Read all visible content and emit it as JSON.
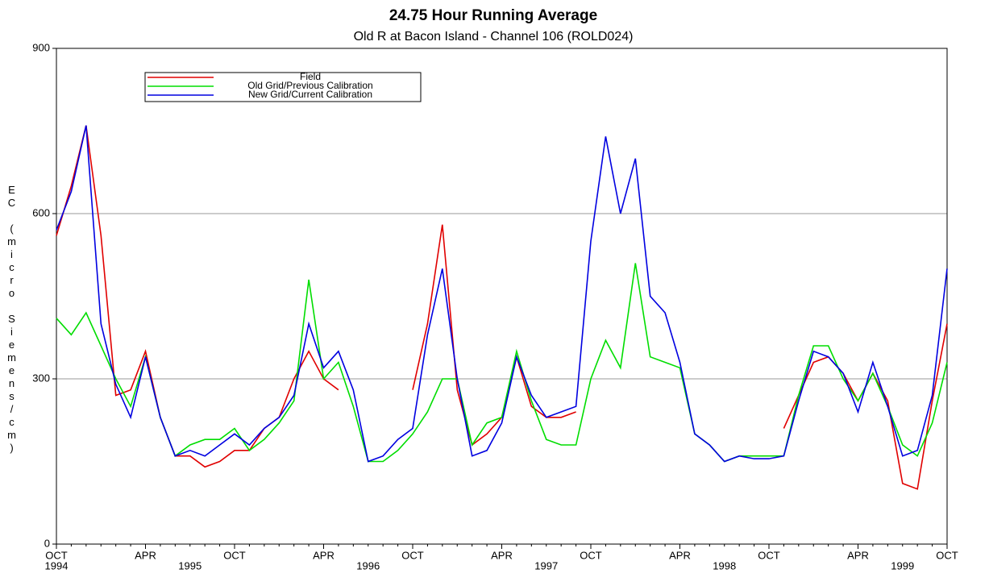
{
  "chart_data": {
    "type": "line",
    "title": "24.75 Hour Running Average",
    "subtitle": "Old R at Bacon Island - Channel 106 (ROLD024)",
    "y_label": "EC (micro Siemens/cm)",
    "x": [
      "1994-10",
      "1994-11",
      "1994-12",
      "1995-01",
      "1995-02",
      "1995-03",
      "1995-04",
      "1995-05",
      "1995-06",
      "1995-07",
      "1995-08",
      "1995-09",
      "1995-10",
      "1995-11",
      "1995-12",
      "1996-01",
      "1996-02",
      "1996-03",
      "1996-04",
      "1996-05",
      "1996-06",
      "1996-07",
      "1996-08",
      "1996-09",
      "1996-10",
      "1996-11",
      "1996-12",
      "1997-01",
      "1997-02",
      "1997-03",
      "1997-04",
      "1997-05",
      "1997-06",
      "1997-07",
      "1997-08",
      "1997-09",
      "1997-10",
      "1997-11",
      "1997-12",
      "1998-01",
      "1998-02",
      "1998-03",
      "1998-04",
      "1998-05",
      "1998-06",
      "1998-07",
      "1998-08",
      "1998-09",
      "1998-10",
      "1998-11",
      "1998-12",
      "1999-01",
      "1999-02",
      "1999-03",
      "1999-04",
      "1999-05",
      "1999-06",
      "1999-07",
      "1999-08",
      "1999-09",
      "1999-10"
    ],
    "series": [
      {
        "name": "Field",
        "color": "#e00000",
        "values": [
          560,
          650,
          760,
          560,
          270,
          280,
          350,
          230,
          160,
          160,
          140,
          150,
          170,
          170,
          210,
          230,
          300,
          350,
          300,
          280,
          null,
          null,
          null,
          null,
          280,
          400,
          580,
          280,
          180,
          200,
          230,
          340,
          250,
          230,
          230,
          240,
          null,
          null,
          null,
          null,
          null,
          null,
          null,
          null,
          null,
          null,
          null,
          null,
          null,
          210,
          270,
          330,
          340,
          310,
          260,
          310,
          260,
          110,
          100,
          260,
          400
        ]
      },
      {
        "name": "Old Grid/Previous Calibration",
        "color": "#00dd00",
        "values": [
          410,
          380,
          420,
          360,
          300,
          250,
          340,
          230,
          160,
          180,
          190,
          190,
          210,
          170,
          190,
          220,
          260,
          480,
          300,
          330,
          250,
          150,
          150,
          170,
          200,
          240,
          300,
          300,
          180,
          220,
          230,
          350,
          260,
          190,
          180,
          180,
          300,
          370,
          320,
          510,
          340,
          330,
          320,
          200,
          180,
          150,
          160,
          160,
          160,
          160,
          270,
          360,
          360,
          300,
          260,
          310,
          250,
          180,
          160,
          220,
          330
        ]
      },
      {
        "name": "New Grid/Current Calibration",
        "color": "#0000e0",
        "values": [
          570,
          640,
          760,
          400,
          290,
          230,
          340,
          230,
          160,
          170,
          160,
          180,
          200,
          180,
          210,
          230,
          270,
          400,
          320,
          350,
          280,
          150,
          160,
          190,
          210,
          380,
          500,
          300,
          160,
          170,
          220,
          340,
          270,
          230,
          240,
          250,
          550,
          740,
          600,
          700,
          450,
          420,
          330,
          200,
          180,
          150,
          160,
          155,
          155,
          160,
          260,
          350,
          340,
          310,
          240,
          330,
          250,
          160,
          170,
          270,
          500
        ]
      }
    ],
    "xlim": [
      "1994-10",
      "1999-10"
    ],
    "xticks": [
      {
        "value": "1994-10",
        "label": "OCT"
      },
      {
        "value": "1995-04",
        "label": "APR"
      },
      {
        "value": "1995-10",
        "label": "OCT"
      },
      {
        "value": "1996-04",
        "label": "APR"
      },
      {
        "value": "1996-10",
        "label": "OCT"
      },
      {
        "value": "1997-04",
        "label": "APR"
      },
      {
        "value": "1997-10",
        "label": "OCT"
      },
      {
        "value": "1998-04",
        "label": "APR"
      },
      {
        "value": "1998-10",
        "label": "OCT"
      },
      {
        "value": "1999-04",
        "label": "APR"
      },
      {
        "value": "1999-10",
        "label": "OCT"
      }
    ],
    "year_labels": [
      {
        "value": "1994-10",
        "label": "1994"
      },
      {
        "value": "1995-07",
        "label": "1995"
      },
      {
        "value": "1996-07",
        "label": "1996"
      },
      {
        "value": "1997-07",
        "label": "1997"
      },
      {
        "value": "1998-07",
        "label": "1998"
      },
      {
        "value": "1999-07",
        "label": "1999"
      }
    ],
    "ylim": [
      0,
      900
    ],
    "yticks": [
      0,
      300,
      600,
      900
    ],
    "grid": true,
    "legend": "upper left"
  }
}
